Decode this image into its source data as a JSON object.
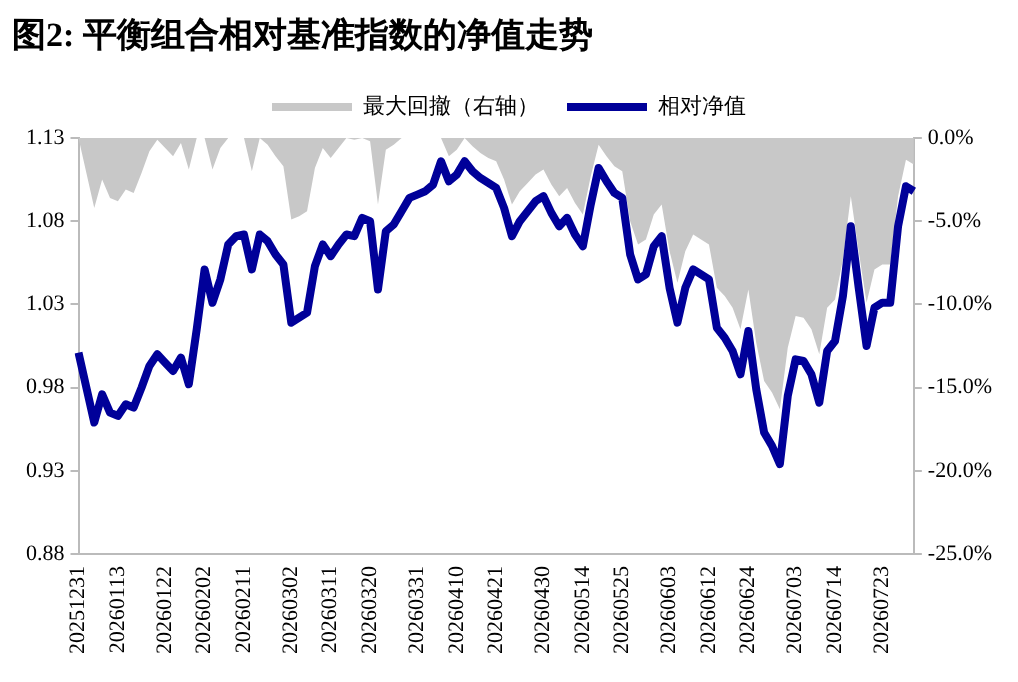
{
  "chart_data": {
    "type": "line",
    "title": "图2:  平衡组合相对基准指数的净值走势",
    "categories": [
      "20251231",
      null,
      null,
      null,
      null,
      "20260113",
      null,
      null,
      null,
      null,
      null,
      "20260122",
      null,
      null,
      null,
      null,
      "20260202",
      null,
      null,
      null,
      null,
      "20260211",
      null,
      null,
      null,
      null,
      null,
      "20260302",
      null,
      null,
      null,
      null,
      "20260311",
      null,
      null,
      null,
      null,
      "20260320",
      null,
      null,
      null,
      null,
      null,
      "20260331",
      null,
      null,
      null,
      null,
      "20260410",
      null,
      null,
      null,
      null,
      "20260421",
      null,
      null,
      null,
      null,
      null,
      "20260430",
      null,
      null,
      null,
      null,
      "20260514",
      null,
      null,
      null,
      null,
      "20260525",
      null,
      null,
      null,
      null,
      null,
      "20260603",
      null,
      null,
      null,
      null,
      "20260612",
      null,
      null,
      null,
      null,
      "20260624",
      null,
      null,
      null,
      null,
      null,
      "20260703",
      null,
      null,
      null,
      null,
      "20260714",
      null,
      null,
      null,
      null,
      null,
      "20260723",
      null,
      null,
      null,
      null
    ],
    "series": [
      {
        "name": "最大回撤（右轴）",
        "type": "area",
        "axis": "y2",
        "color": "#c8c8c8",
        "values": [
          0,
          -2.1,
          -4.2,
          -2.5,
          -3.6,
          -3.8,
          -3.1,
          -3.3,
          -2.1,
          -0.8,
          -0.1,
          -0.6,
          -1.1,
          -0.3,
          -1.9,
          0,
          0,
          -1.9,
          -0.6,
          0,
          0,
          0,
          -2.0,
          0,
          -0.4,
          -1.1,
          -1.7,
          -4.9,
          -4.7,
          -4.4,
          -1.8,
          -0.6,
          -1.2,
          -0.6,
          0,
          -0.1,
          0,
          -0.2,
          -4.0,
          -0.7,
          -0.4,
          0,
          0,
          0,
          0,
          0,
          0,
          -1.1,
          -0.7,
          0,
          -0.5,
          -0.9,
          -1.2,
          -1.4,
          -2.5,
          -4.0,
          -3.2,
          -2.7,
          -2.2,
          -1.9,
          -2.8,
          -3.5,
          -3.0,
          -3.9,
          -4.6,
          -2.3,
          -0.4,
          -1.1,
          -1.7,
          -2.0,
          -5.0,
          -6.4,
          -6.1,
          -4.6,
          -4.0,
          -6.8,
          -8.7,
          -6.8,
          -5.8,
          -6.1,
          -6.4,
          -9.0,
          -9.5,
          -10.2,
          -11.5,
          -9.1,
          -12.3,
          -14.6,
          -15.3,
          -16.3,
          -12.6,
          -10.7,
          -10.8,
          -11.5,
          -13.0,
          -10.2,
          -9.7,
          -7.3,
          -3.5,
          -6.8,
          -9.9,
          -7.9,
          -7.6,
          -7.6,
          -3.5,
          -1.3,
          -1.6
        ]
      },
      {
        "name": "相对净值",
        "type": "line",
        "axis": "y",
        "color": "#000099",
        "values": [
          1.001,
          0.98,
          0.959,
          0.976,
          0.965,
          0.963,
          0.97,
          0.968,
          0.98,
          0.993,
          1.0,
          0.995,
          0.99,
          0.998,
          0.982,
          1.015,
          1.051,
          1.031,
          1.045,
          1.066,
          1.071,
          1.072,
          1.051,
          1.072,
          1.068,
          1.06,
          1.054,
          1.019,
          1.022,
          1.025,
          1.053,
          1.066,
          1.059,
          1.066,
          1.072,
          1.071,
          1.082,
          1.08,
          1.039,
          1.074,
          1.078,
          1.086,
          1.094,
          1.096,
          1.098,
          1.102,
          1.116,
          1.104,
          1.108,
          1.116,
          1.11,
          1.106,
          1.103,
          1.1,
          1.088,
          1.071,
          1.08,
          1.086,
          1.092,
          1.095,
          1.085,
          1.077,
          1.082,
          1.072,
          1.065,
          1.09,
          1.112,
          1.104,
          1.097,
          1.094,
          1.06,
          1.045,
          1.048,
          1.065,
          1.071,
          1.04,
          1.019,
          1.04,
          1.051,
          1.048,
          1.045,
          1.016,
          1.01,
          1.002,
          0.988,
          1.014,
          0.979,
          0.953,
          0.945,
          0.934,
          0.975,
          0.997,
          0.996,
          0.988,
          0.971,
          1.002,
          1.008,
          1.035,
          1.077,
          1.04,
          1.005,
          1.028,
          1.031,
          1.031,
          1.077,
          1.101,
          1.098
        ]
      }
    ],
    "ylim": [
      0.88,
      1.13
    ],
    "yticks": [
      0.88,
      0.93,
      0.98,
      1.03,
      1.08,
      1.13
    ],
    "y2lim": [
      -25,
      0
    ],
    "y2ticks": [
      {
        "value": 0,
        "label": "0.0%"
      },
      {
        "value": -5,
        "label": "-5.0%"
      },
      {
        "value": -10,
        "label": "-10.0%"
      },
      {
        "value": -15,
        "label": "-15.0%"
      },
      {
        "value": -20,
        "label": "-20.0%"
      },
      {
        "value": -25,
        "label": "-25.0%"
      }
    ],
    "grid": false,
    "legend": "top",
    "marker": "none",
    "line_style": "solid"
  }
}
